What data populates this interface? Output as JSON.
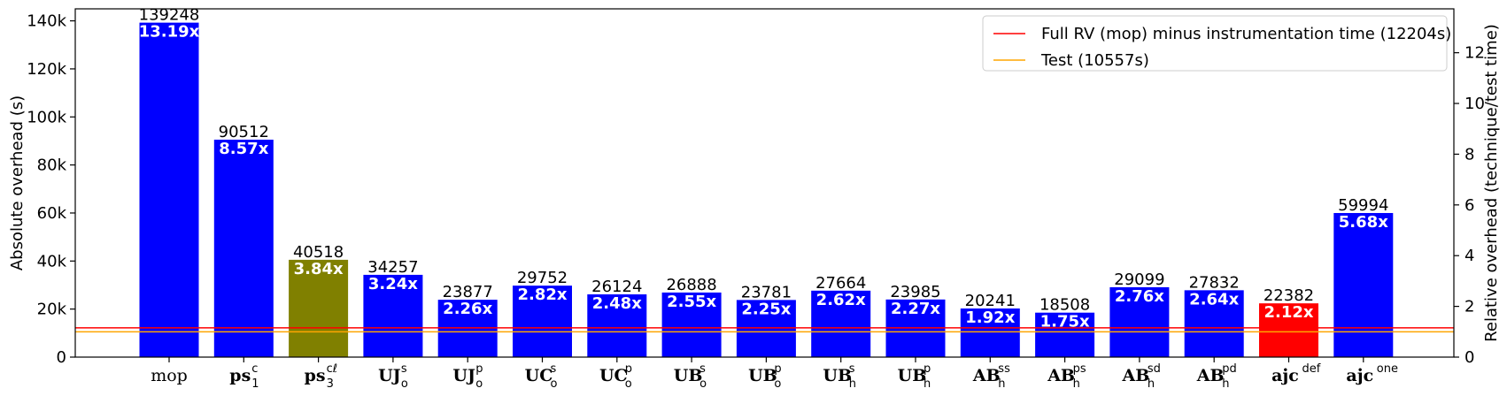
{
  "chart_data": {
    "type": "bar",
    "ylabel": "Absolute overhead (s)",
    "y2label": "Relative overhead (technique/test time)",
    "ylim": [
      0,
      145000
    ],
    "y2lim": [
      0,
      13.73
    ],
    "yticks": [
      "0",
      "20k",
      "40k",
      "60k",
      "80k",
      "100k",
      "120k",
      "140k"
    ],
    "ytick_values": [
      0,
      20000,
      40000,
      60000,
      80000,
      100000,
      120000,
      140000
    ],
    "y2ticks": [
      "0",
      "2",
      "4",
      "6",
      "8",
      "10",
      "12"
    ],
    "y2tick_values": [
      0,
      2,
      4,
      6,
      8,
      10,
      12
    ],
    "categories": [
      {
        "base": "mop",
        "sup": "",
        "sub": "",
        "bold": false
      },
      {
        "base": "ps",
        "sup": "c",
        "sub": "1",
        "bold": true
      },
      {
        "base": "ps",
        "sup": "cℓ",
        "sub": "3",
        "bold": true
      },
      {
        "base": "UJ",
        "sup": "s",
        "sub": "o",
        "bold": true
      },
      {
        "base": "UJ",
        "sup": "p",
        "sub": "o",
        "bold": true
      },
      {
        "base": "UC",
        "sup": "s",
        "sub": "o",
        "bold": true
      },
      {
        "base": "UC",
        "sup": "p",
        "sub": "o",
        "bold": true
      },
      {
        "base": "UB",
        "sup": "s",
        "sub": "o",
        "bold": true
      },
      {
        "base": "UB",
        "sup": "p",
        "sub": "o",
        "bold": true
      },
      {
        "base": "UB",
        "sup": "s",
        "sub": "h",
        "bold": true
      },
      {
        "base": "UB",
        "sup": "p",
        "sub": "h",
        "bold": true
      },
      {
        "base": "AB",
        "sup": "ss",
        "sub": "h",
        "bold": true
      },
      {
        "base": "AB",
        "sup": "ps",
        "sub": "h",
        "bold": true
      },
      {
        "base": "AB",
        "sup": "sd",
        "sub": "h",
        "bold": true
      },
      {
        "base": "AB",
        "sup": "pd",
        "sub": "h",
        "bold": true
      },
      {
        "base": "ajc",
        "sup": "def",
        "sub": "",
        "bold": true
      },
      {
        "base": "ajc",
        "sup": "one",
        "sub": "",
        "bold": true
      }
    ],
    "values": [
      139248,
      90512,
      40518,
      34257,
      23877,
      29752,
      26124,
      26888,
      23781,
      27664,
      23985,
      20241,
      18508,
      29099,
      27832,
      22382,
      59994
    ],
    "value_labels": [
      "139248",
      "90512",
      "40518",
      "34257",
      "23877",
      "29752",
      "26124",
      "26888",
      "23781",
      "27664",
      "23985",
      "20241",
      "18508",
      "29099",
      "27832",
      "22382",
      "59994"
    ],
    "ratio_labels": [
      "13.19x",
      "8.57x",
      "3.84x",
      "3.24x",
      "2.26x",
      "2.82x",
      "2.48x",
      "2.55x",
      "2.25x",
      "2.62x",
      "2.27x",
      "1.92x",
      "1.75x",
      "2.76x",
      "2.64x",
      "2.12x",
      "5.68x"
    ],
    "bar_colors": [
      "#0000ff",
      "#0000ff",
      "#808000",
      "#0000ff",
      "#0000ff",
      "#0000ff",
      "#0000ff",
      "#0000ff",
      "#0000ff",
      "#0000ff",
      "#0000ff",
      "#0000ff",
      "#0000ff",
      "#0000ff",
      "#0000ff",
      "#ff0000",
      "#0000ff"
    ],
    "hlines": [
      {
        "name": "Full RV (mop) minus instrumentation time (12204s)",
        "value": 12204,
        "color": "#ff0000"
      },
      {
        "name": "Test (10557s)",
        "value": 10557,
        "color": "#ffa500"
      }
    ],
    "legend_position": "top-right",
    "grid": false
  }
}
